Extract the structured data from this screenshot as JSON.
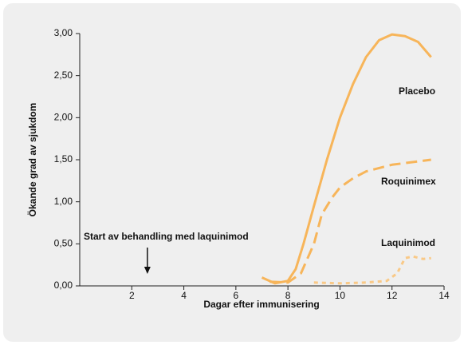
{
  "chart_data": {
    "type": "line",
    "xlabel": "Dagar efter immunisering",
    "ylabel": "Ökande grad av sjukdom",
    "annotation": "Start av behandling med laquinimod",
    "annotation_x": 2.6,
    "xlim": [
      0,
      14
    ],
    "xticks": [
      2,
      4,
      6,
      8,
      10,
      12,
      14
    ],
    "ylim": [
      0,
      3
    ],
    "yticks": [
      {
        "value": 0,
        "label": "0,00"
      },
      {
        "value": 0.5,
        "label": "0,50"
      },
      {
        "value": 1,
        "label": "1,00"
      },
      {
        "value": 1.5,
        "label": "1,50"
      },
      {
        "value": 2,
        "label": "2,00"
      },
      {
        "value": 2.5,
        "label": "2,50"
      },
      {
        "value": 3,
        "label": "3,00"
      }
    ],
    "series": [
      {
        "name": "Placebo",
        "color": "#f7b55a",
        "style": "solid",
        "x": [
          7,
          7.5,
          8,
          8.3,
          8.6,
          9,
          9.5,
          10,
          10.5,
          11,
          11.5,
          12,
          12.5,
          13,
          13.5
        ],
        "values": [
          0.1,
          0.03,
          0.06,
          0.2,
          0.5,
          0.95,
          1.5,
          2.0,
          2.4,
          2.72,
          2.92,
          2.99,
          2.97,
          2.9,
          2.72
        ]
      },
      {
        "name": "Roquinimex",
        "color": "#f7b55a",
        "style": "dashed",
        "x": [
          7.3,
          8,
          8.5,
          9,
          9.3,
          9.7,
          10,
          10.5,
          11,
          12,
          13,
          13.5
        ],
        "values": [
          0.05,
          0.04,
          0.15,
          0.5,
          0.85,
          1.05,
          1.17,
          1.28,
          1.36,
          1.44,
          1.48,
          1.5
        ]
      },
      {
        "name": "Laquinimod",
        "color": "#f9c987",
        "style": "dotted",
        "x": [
          9,
          10,
          11,
          11.8,
          12.2,
          12.5,
          12.8,
          13.2,
          13.5
        ],
        "values": [
          0.04,
          0.03,
          0.04,
          0.06,
          0.15,
          0.33,
          0.35,
          0.32,
          0.33
        ]
      }
    ]
  }
}
